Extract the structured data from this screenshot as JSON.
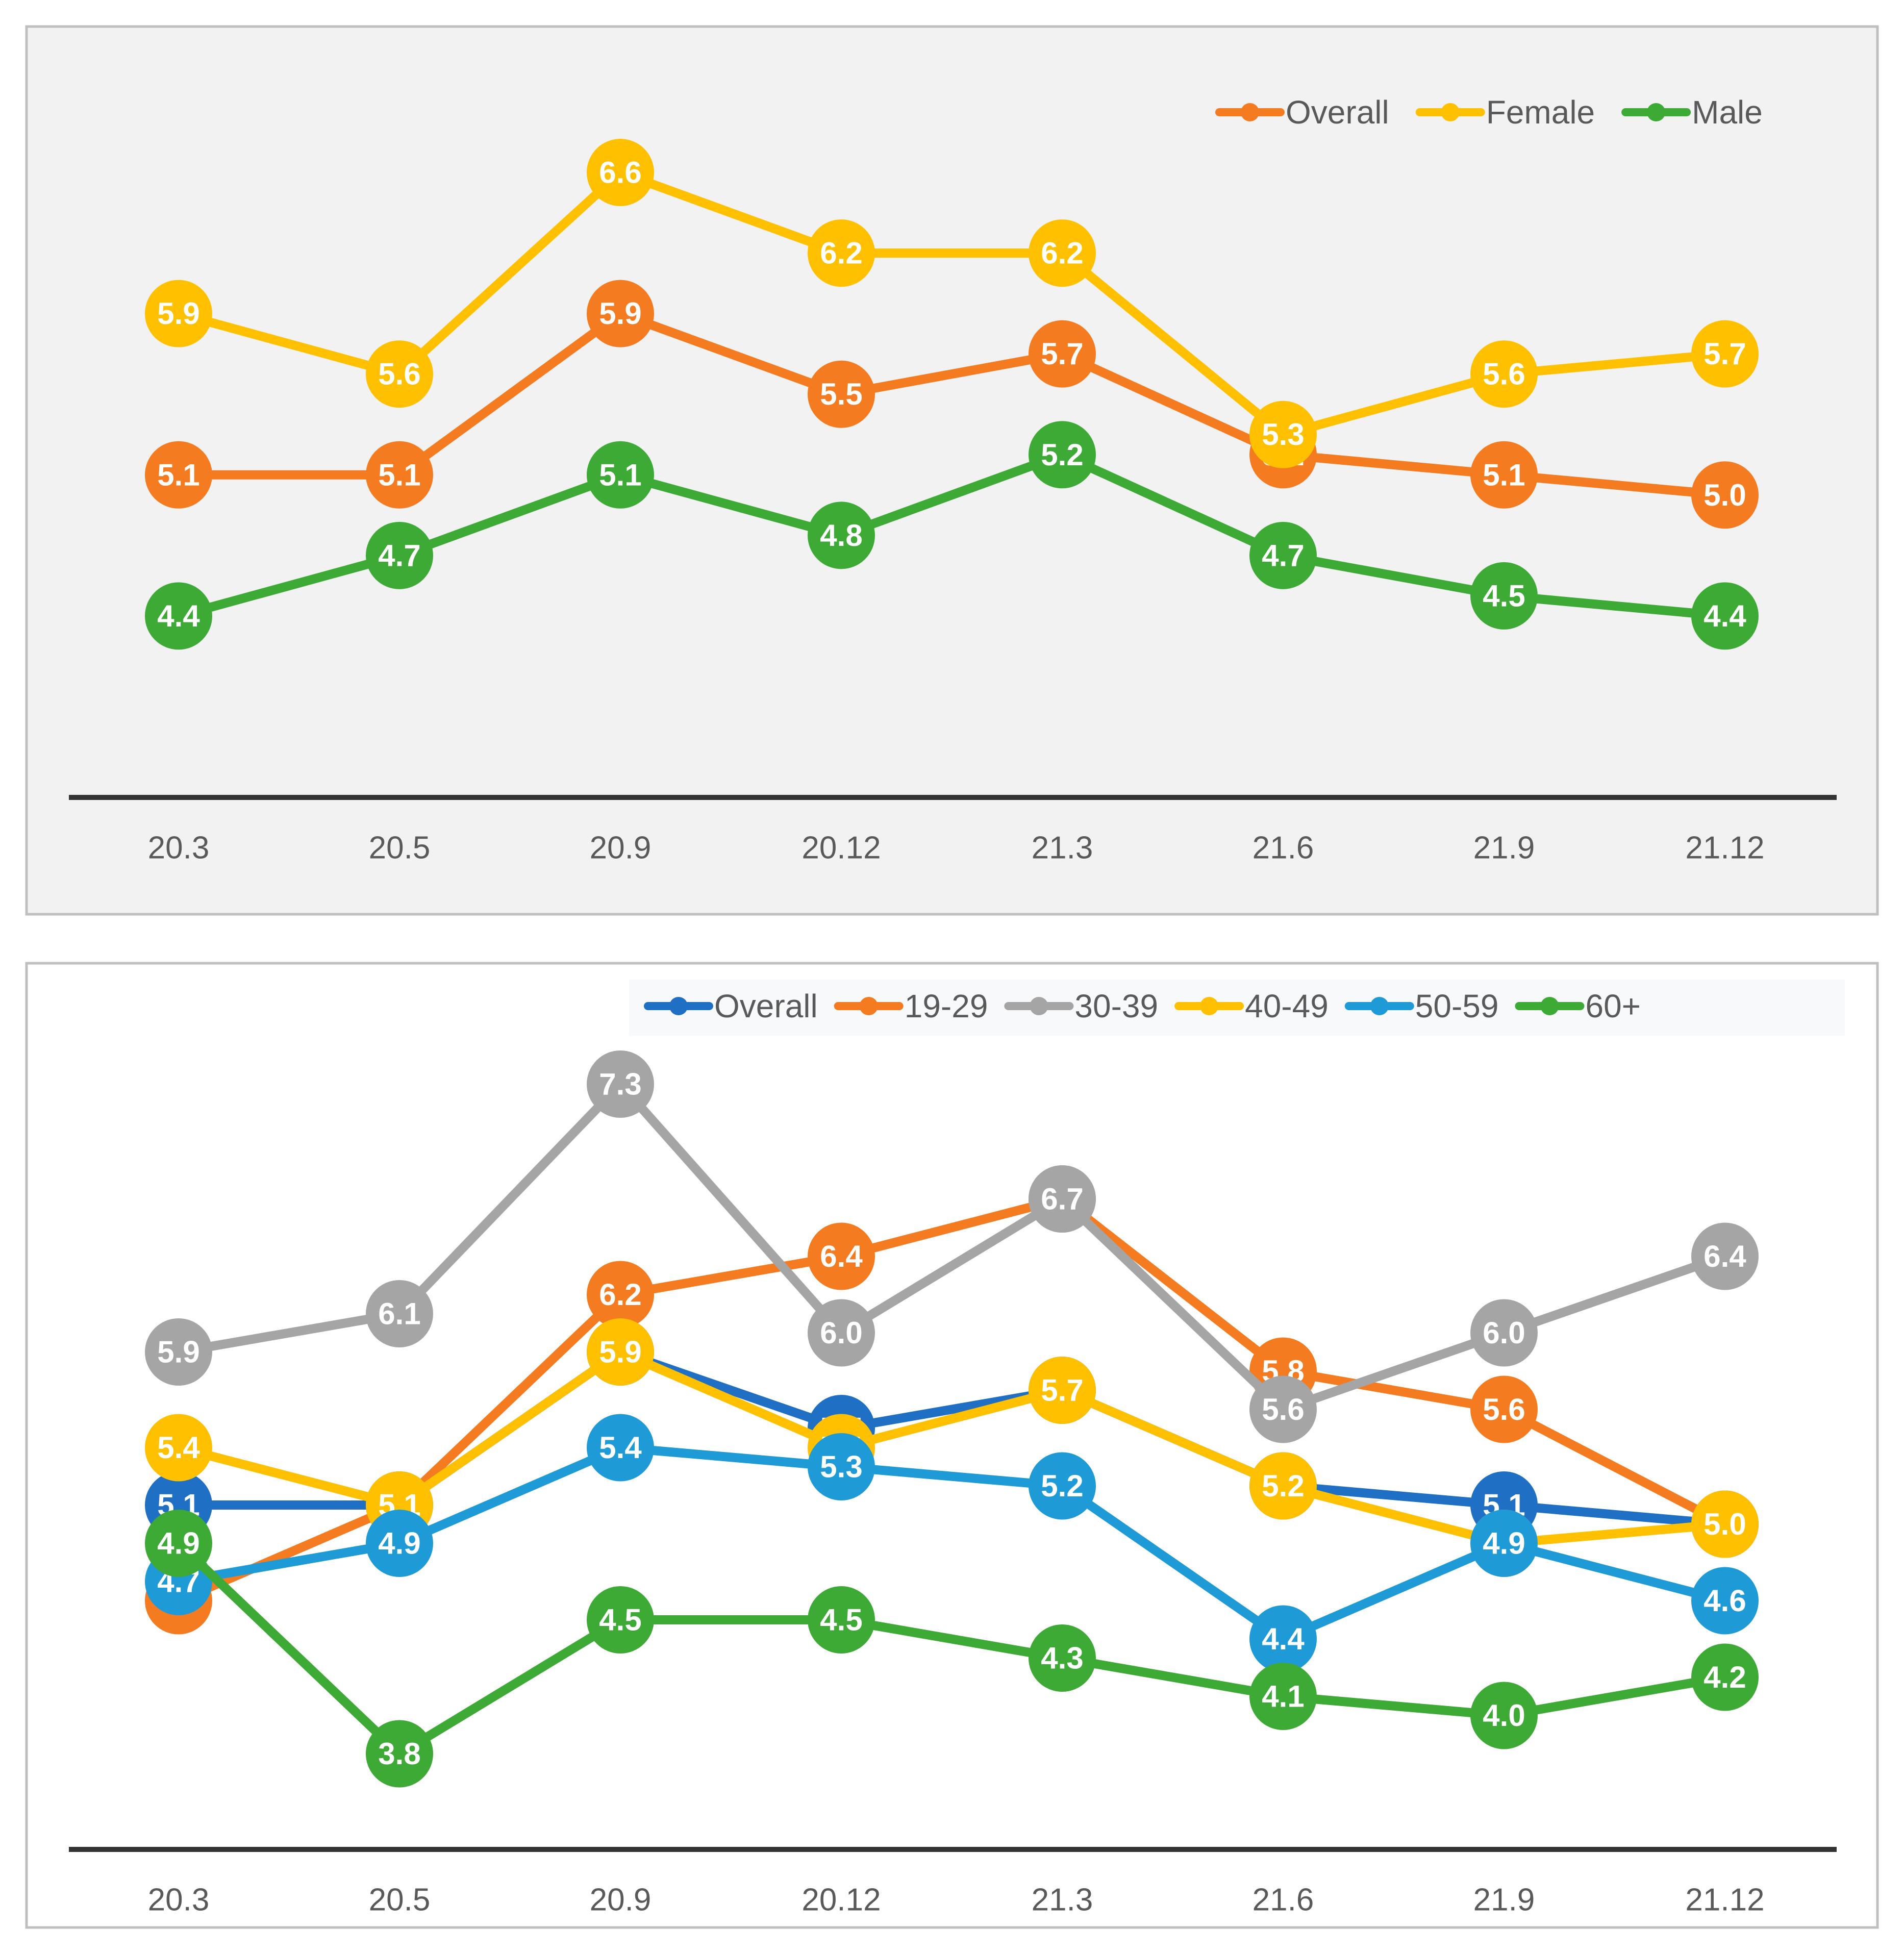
{
  "chart_data": [
    {
      "type": "line",
      "id": "gender",
      "categories": [
        "20.3",
        "20.5",
        "20.9",
        "20.12",
        "21.3",
        "21.6",
        "21.9",
        "21.12"
      ],
      "ylim": [
        3.5,
        7.0
      ],
      "legend_position": "top-right",
      "series": [
        {
          "name": "Overall",
          "color": "#F47B20",
          "values": [
            5.1,
            5.1,
            5.9,
            5.5,
            5.7,
            5.2,
            5.1,
            5.0
          ]
        },
        {
          "name": "Female",
          "color": "#FFC000",
          "values": [
            5.9,
            5.6,
            6.6,
            6.2,
            6.2,
            5.3,
            5.6,
            5.7
          ]
        },
        {
          "name": "Male",
          "color": "#3DAA35",
          "values": [
            4.4,
            4.7,
            5.1,
            4.8,
            5.2,
            4.7,
            4.5,
            4.4
          ]
        }
      ]
    },
    {
      "type": "line",
      "id": "age",
      "categories": [
        "20.3",
        "20.5",
        "20.9",
        "20.12",
        "21.3",
        "21.6",
        "21.9",
        "21.12"
      ],
      "ylim": [
        3.3,
        7.7
      ],
      "legend_position": "top-right",
      "series": [
        {
          "name": "Overall",
          "color": "#1F6FC5",
          "values": [
            5.1,
            5.1,
            5.9,
            5.5,
            5.7,
            5.2,
            5.1,
            5.0
          ]
        },
        {
          "name": "19-29",
          "color": "#F47B20",
          "values": [
            4.6,
            5.1,
            6.2,
            6.4,
            6.7,
            5.8,
            5.6,
            5.0
          ]
        },
        {
          "name": "30-39",
          "color": "#A5A5A5",
          "values": [
            5.9,
            6.1,
            7.3,
            6.0,
            6.7,
            5.6,
            6.0,
            6.4
          ]
        },
        {
          "name": "40-49",
          "color": "#FFC000",
          "values": [
            5.4,
            5.1,
            5.9,
            5.4,
            5.7,
            5.2,
            4.9,
            5.0
          ]
        },
        {
          "name": "50-59",
          "color": "#1E9BD7",
          "values": [
            4.7,
            4.9,
            5.4,
            5.3,
            5.2,
            4.4,
            4.9,
            4.6
          ]
        },
        {
          "name": "60+",
          "color": "#3DAA35",
          "values": [
            4.9,
            3.8,
            4.5,
            4.5,
            4.3,
            4.1,
            4.0,
            4.2
          ]
        }
      ]
    }
  ]
}
